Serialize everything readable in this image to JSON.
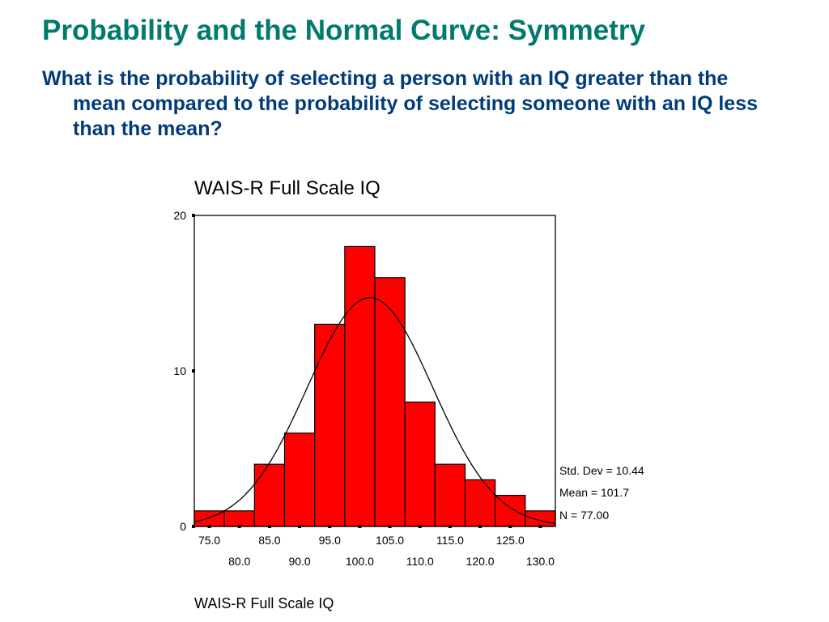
{
  "slide": {
    "title": "Probability and the Normal Curve: Symmetry",
    "question": "What is the probability of selecting a person with an IQ greater than the mean compared to the probability of selecting someone with an IQ less than the mean?"
  },
  "chart_data": {
    "type": "bar",
    "title": "WAIS-R Full Scale IQ",
    "xlabel": "WAIS-R Full Scale IQ",
    "ylabel": "",
    "categories": [
      "75.0",
      "80.0",
      "85.0",
      "90.0",
      "95.0",
      "100.0",
      "105.0",
      "110.0",
      "115.0",
      "120.0",
      "125.0",
      "130.0"
    ],
    "values": [
      1,
      1,
      4,
      6,
      13,
      18,
      16,
      8,
      4,
      3,
      2,
      1
    ],
    "ylim": [
      0,
      20
    ],
    "yticks": [
      "0",
      "10",
      "20"
    ],
    "bar_color": "#ff0000",
    "curve": {
      "type": "normal",
      "mean": 101.7,
      "std": 10.44,
      "n": 77.0,
      "bin_width": 5.0
    },
    "stats": [
      "Std. Dev = 10.44",
      "Mean = 101.7",
      "N = 77.00"
    ],
    "grid": false,
    "legend": "none"
  }
}
